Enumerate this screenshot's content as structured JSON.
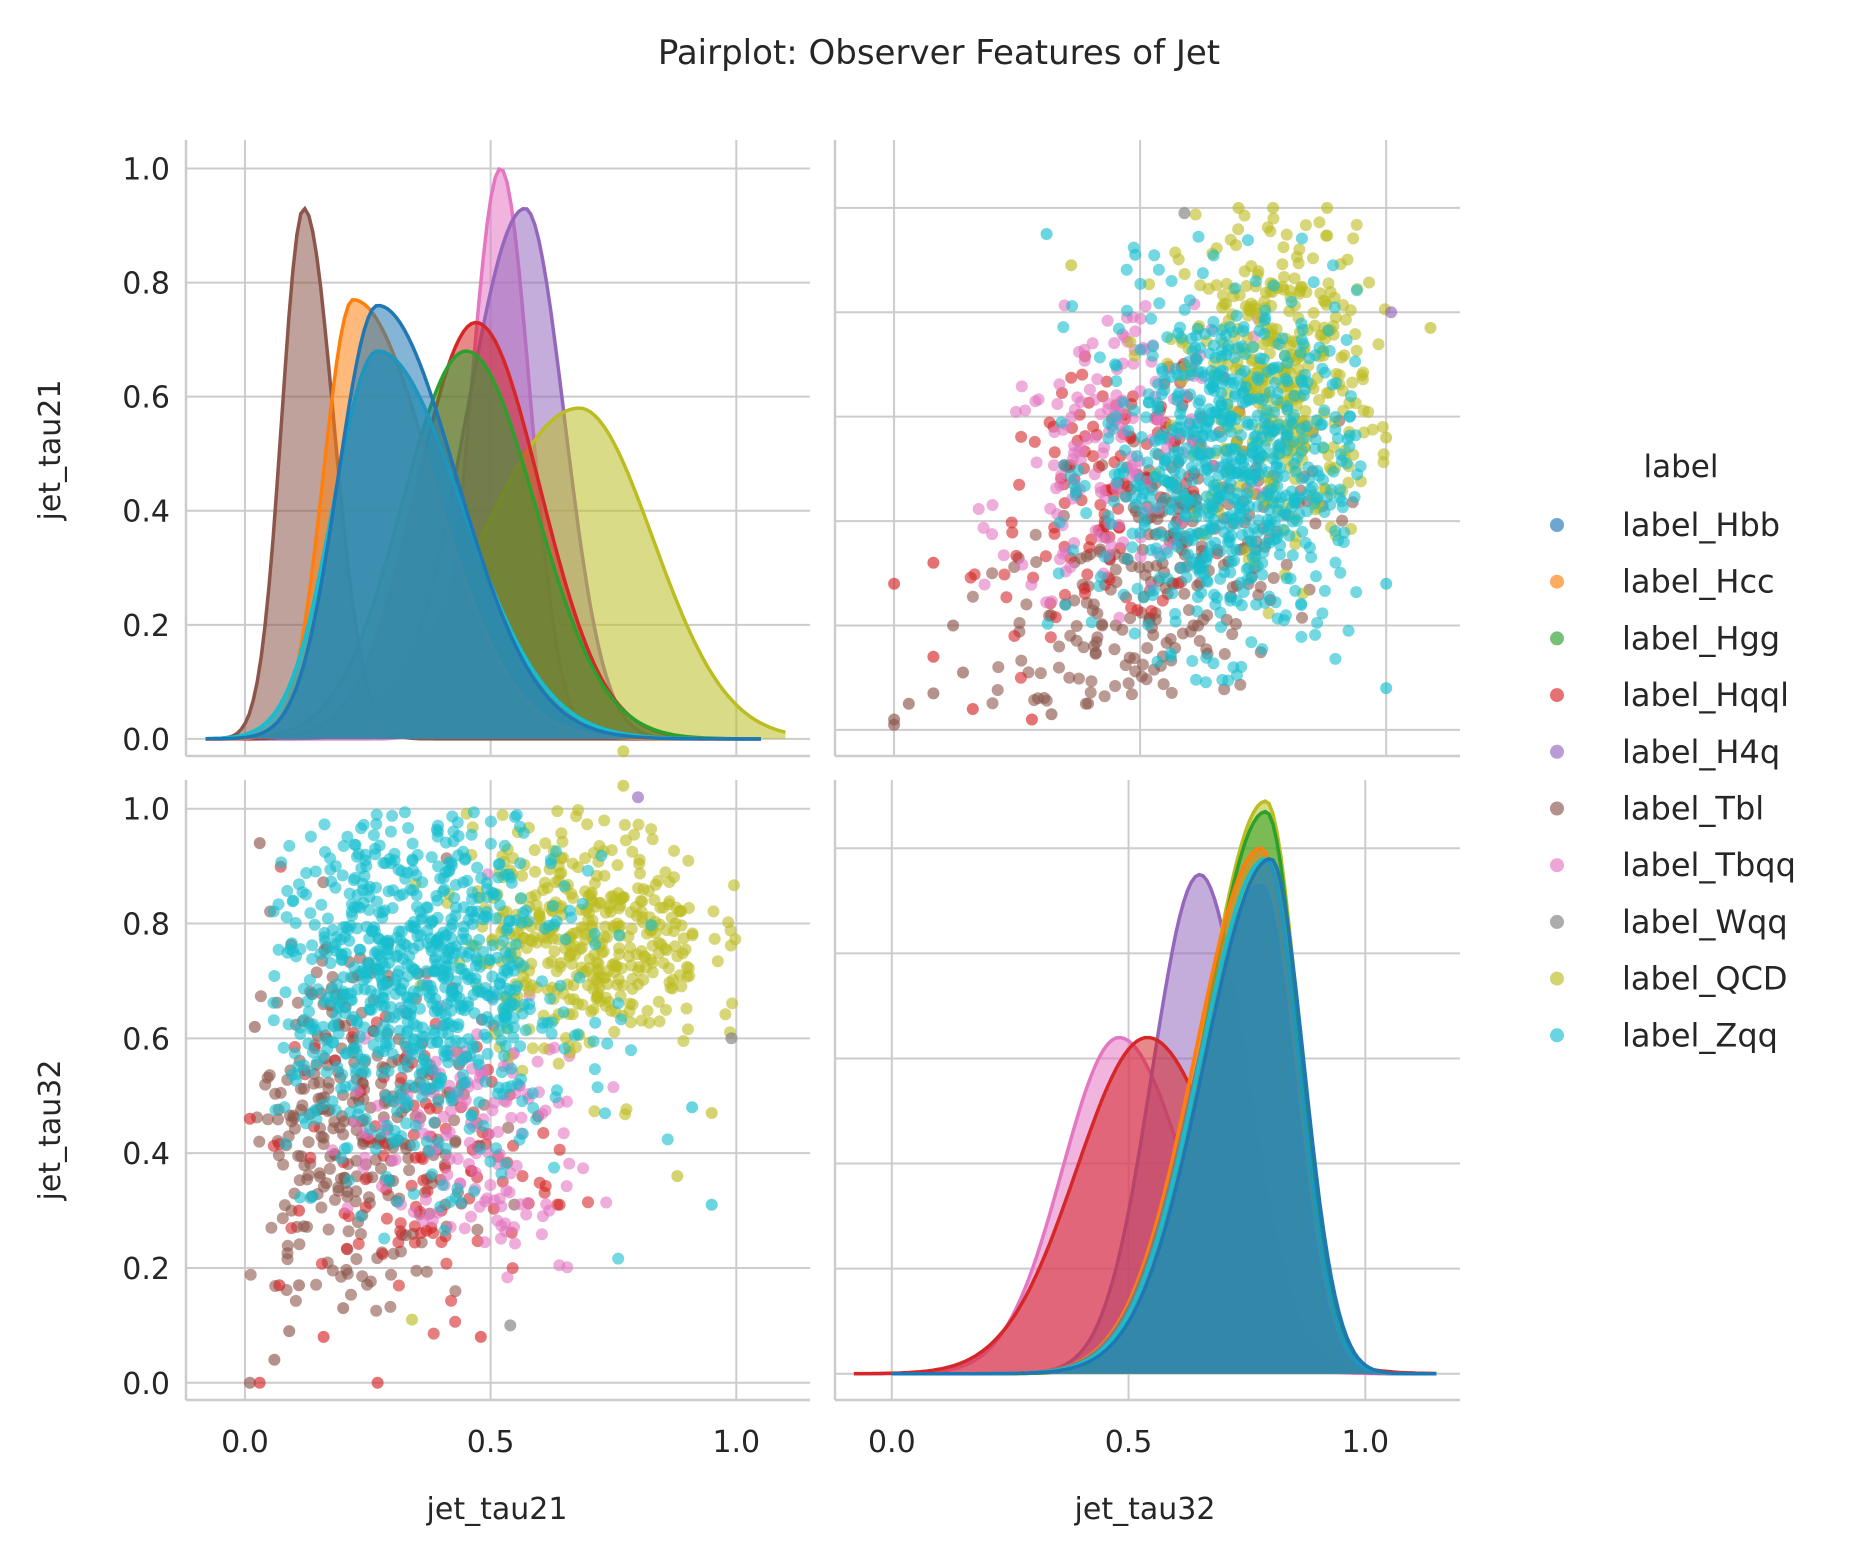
{
  "chart_data": {
    "type": "pairplot",
    "title": "Pairplot: Observer Features of Jet",
    "variables": [
      "jet_tau21",
      "jet_tau32"
    ],
    "hue_title": "label",
    "grid": true,
    "legend_position": "right",
    "x_ticks": [
      "0.0",
      "0.5",
      "1.0"
    ],
    "y_ticks_top": [
      "0.0",
      "0.2",
      "0.4",
      "0.6",
      "0.8",
      "1.0"
    ],
    "y_ticks_bottom": [
      "0.0",
      "0.2",
      "0.4",
      "0.6",
      "0.8",
      "1.0"
    ],
    "panels": {
      "tau21_kde": {
        "xlim": [
          -0.12,
          1.15
        ],
        "ylim": [
          -0.03,
          1.05
        ],
        "normalized_density": true
      },
      "scatter_tau32_vs_tau21": {
        "xlim": [
          -0.12,
          1.15
        ],
        "ylim": [
          -0.05,
          1.13
        ]
      },
      "scatter_tau21_vs_tau32": {
        "xlim": [
          -0.12,
          1.15
        ],
        "ylim": [
          -0.03,
          1.05
        ]
      },
      "tau32_kde": {
        "xlim": [
          -0.12,
          1.2
        ],
        "ylim": [
          -0.05,
          1.13
        ],
        "normalized_density": true
      }
    },
    "series": [
      {
        "name": "label_Hbb",
        "color": "#1f77b4",
        "tau21_kde": {
          "peak_x": 0.27,
          "peak_y": 0.76,
          "sd_left": 0.08,
          "sd_right": 0.16,
          "support": [
            -0.08,
            1.05
          ]
        },
        "tau32_kde": {
          "peak_x": 0.8,
          "peak_y": 0.98,
          "sd_left": 0.14,
          "sd_right": 0.07,
          "support": [
            0.0,
            1.15
          ]
        }
      },
      {
        "name": "label_Hcc",
        "color": "#ff7f0e",
        "tau21_kde": {
          "peak_x": 0.22,
          "peak_y": 0.77,
          "sd_left": 0.06,
          "sd_right": 0.16,
          "support": [
            -0.08,
            1.05
          ]
        },
        "tau32_kde": {
          "peak_x": 0.78,
          "peak_y": 1.0,
          "sd_left": 0.14,
          "sd_right": 0.07,
          "support": [
            0.0,
            1.15
          ]
        }
      },
      {
        "name": "label_Hgg",
        "color": "#2ca02c",
        "tau21_kde": {
          "peak_x": 0.45,
          "peak_y": 0.68,
          "sd_left": 0.13,
          "sd_right": 0.14,
          "support": [
            -0.08,
            1.05
          ]
        },
        "tau32_kde": {
          "peak_x": 0.79,
          "peak_y": 1.07,
          "sd_left": 0.13,
          "sd_right": 0.07,
          "support": [
            0.0,
            1.15
          ]
        }
      },
      {
        "name": "label_Hqql",
        "color": "#d62728",
        "tau21_kde": {
          "peak_x": 0.47,
          "peak_y": 0.73,
          "sd_left": 0.12,
          "sd_right": 0.13,
          "support": [
            -0.08,
            1.05
          ]
        },
        "tau32_kde": {
          "peak_x": 0.54,
          "peak_y": 0.64,
          "sd_left": 0.15,
          "sd_right": 0.16,
          "support": [
            -0.08,
            1.15
          ]
        }
      },
      {
        "name": "label_H4q",
        "color": "#9467bd",
        "tau21_kde": {
          "peak_x": 0.57,
          "peak_y": 0.93,
          "sd_left": 0.12,
          "sd_right": 0.08,
          "support": [
            -0.08,
            1.05
          ]
        },
        "tau32_kde": {
          "peak_x": 0.65,
          "peak_y": 0.95,
          "sd_left": 0.1,
          "sd_right": 0.1,
          "support": [
            0.0,
            1.15
          ]
        }
      },
      {
        "name": "label_Tbl",
        "color": "#8c564b",
        "tau21_kde": {
          "peak_x": 0.12,
          "peak_y": 0.93,
          "sd_left": 0.045,
          "sd_right": 0.06,
          "support": [
            -0.08,
            1.05
          ]
        },
        "tau32_kde": {
          "peak_x": 0.78,
          "peak_y": 0.93,
          "sd_left": 0.14,
          "sd_right": 0.07,
          "support": [
            0.0,
            1.15
          ]
        }
      },
      {
        "name": "label_Tbqq",
        "color": "#e377c2",
        "tau21_kde": {
          "peak_x": 0.52,
          "peak_y": 1.0,
          "sd_left": 0.06,
          "sd_right": 0.06,
          "support": [
            -0.08,
            1.05
          ]
        },
        "tau32_kde": {
          "peak_x": 0.48,
          "peak_y": 0.64,
          "sd_left": 0.12,
          "sd_right": 0.14,
          "support": [
            -0.08,
            1.15
          ]
        }
      },
      {
        "name": "label_Wqq",
        "color": "#7f7f7f",
        "tau21_kde": {
          "peak_x": 0.27,
          "peak_y": 0.68,
          "sd_left": 0.09,
          "sd_right": 0.17,
          "support": [
            -0.08,
            1.05
          ]
        },
        "tau32_kde": {
          "peak_x": 0.78,
          "peak_y": 0.93,
          "sd_left": 0.14,
          "sd_right": 0.07,
          "support": [
            0.0,
            1.15
          ]
        }
      },
      {
        "name": "label_QCD",
        "color": "#bcbd22",
        "tau21_kde": {
          "peak_x": 0.68,
          "peak_y": 0.58,
          "sd_left": 0.2,
          "sd_right": 0.15,
          "support": [
            -0.08,
            1.1
          ]
        },
        "tau32_kde": {
          "peak_x": 0.79,
          "peak_y": 1.09,
          "sd_left": 0.13,
          "sd_right": 0.07,
          "support": [
            0.0,
            1.15
          ]
        }
      },
      {
        "name": "label_Zqq",
        "color": "#17becf",
        "tau21_kde": {
          "peak_x": 0.27,
          "peak_y": 0.68,
          "sd_left": 0.09,
          "sd_right": 0.17,
          "support": [
            -0.08,
            1.05
          ]
        },
        "tau32_kde": {
          "peak_x": 0.79,
          "peak_y": 0.98,
          "sd_left": 0.14,
          "sd_right": 0.07,
          "support": [
            0.0,
            1.15
          ]
        }
      }
    ],
    "kde_draw_order": [
      "label_Tbqq",
      "label_H4q",
      "label_QCD",
      "label_Hqql",
      "label_Hgg",
      "label_Tbl",
      "label_Hcc",
      "label_Wqq",
      "label_Zqq",
      "label_Hbb"
    ],
    "kde32_draw_order": [
      "label_Tbqq",
      "label_H4q",
      "label_Hqql",
      "label_QCD",
      "label_Hgg",
      "label_Hcc",
      "label_Tbl",
      "label_Wqq",
      "label_Zqq",
      "label_Hbb"
    ],
    "scatter_points_tau21_tau32": [
      {
        "label": "label_Tbl",
        "x": 0.01,
        "y": 0.0
      },
      {
        "label": "label_Hqql",
        "x": 0.03,
        "y": 0.0
      },
      {
        "label": "label_Tbl",
        "x": 0.06,
        "y": 0.04
      },
      {
        "label": "label_Tbl",
        "x": 0.09,
        "y": 0.09
      },
      {
        "label": "label_Hqql",
        "x": 0.07,
        "y": 0.17
      },
      {
        "label": "label_Tbl",
        "x": 0.11,
        "y": 0.17
      },
      {
        "label": "label_Hqql",
        "x": 0.16,
        "y": 0.08
      },
      {
        "label": "label_Tbl",
        "x": 0.2,
        "y": 0.13
      },
      {
        "label": "label_Hqql",
        "x": 0.27,
        "y": 0.0
      },
      {
        "label": "label_Hqql",
        "x": 0.01,
        "y": 0.46
      },
      {
        "label": "label_Tbl",
        "x": 0.02,
        "y": 0.62
      },
      {
        "label": "label_Tbl",
        "x": 0.03,
        "y": 0.94
      },
      {
        "label": "label_QCD",
        "x": 0.34,
        "y": 0.11
      },
      {
        "label": "label_Wqq",
        "x": 0.54,
        "y": 0.1
      },
      {
        "label": "label_Hqql",
        "x": 0.48,
        "y": 0.08
      },
      {
        "label": "label_QCD",
        "x": 0.88,
        "y": 0.36
      },
      {
        "label": "label_Zqq",
        "x": 0.95,
        "y": 0.31
      },
      {
        "label": "label_Wqq",
        "x": 0.99,
        "y": 0.6
      },
      {
        "label": "label_QCD",
        "x": 0.77,
        "y": 1.1
      },
      {
        "label": "label_QCD",
        "x": 0.77,
        "y": 1.04
      },
      {
        "label": "label_H4q",
        "x": 0.8,
        "y": 1.02
      },
      {
        "label": "label_Zqq",
        "x": 0.91,
        "y": 0.48
      },
      {
        "label": "label_QCD",
        "x": 0.95,
        "y": 0.47
      },
      {
        "label": "label_Hqql",
        "x": 0.11,
        "y": 0.3
      }
    ],
    "scatter_points_tau32_tau21": [
      {
        "label": "label_Tbl",
        "x": 0.0,
        "y": 0.02
      },
      {
        "label": "label_Tbl",
        "x": 0.0,
        "y": 0.01
      },
      {
        "label": "label_Hqql",
        "x": 0.0,
        "y": 0.28
      },
      {
        "label": "label_Tbl",
        "x": 0.03,
        "y": 0.05
      },
      {
        "label": "label_Tbl",
        "x": 0.08,
        "y": 0.07
      },
      {
        "label": "label_Hqql",
        "x": 0.08,
        "y": 0.14
      },
      {
        "label": "label_Tbl",
        "x": 0.12,
        "y": 0.2
      },
      {
        "label": "label_Hqql",
        "x": 0.16,
        "y": 0.04
      },
      {
        "label": "label_Hqql",
        "x": 0.08,
        "y": 0.32
      },
      {
        "label": "label_Tbl",
        "x": 0.14,
        "y": 0.11
      },
      {
        "label": "label_Hqql",
        "x": 0.28,
        "y": 0.02
      },
      {
        "label": "label_Tbl",
        "x": 0.32,
        "y": 0.03
      },
      {
        "label": "label_Zqq",
        "x": 0.31,
        "y": 0.95
      },
      {
        "label": "label_Wqq",
        "x": 0.59,
        "y": 0.99
      },
      {
        "label": "label_QCD",
        "x": 0.36,
        "y": 0.89
      },
      {
        "label": "label_Zqq",
        "x": 0.49,
        "y": 0.91
      },
      {
        "label": "label_QCD",
        "x": 1.09,
        "y": 0.77
      },
      {
        "label": "label_H4q",
        "x": 1.01,
        "y": 0.8
      },
      {
        "label": "label_Zqq",
        "x": 1.0,
        "y": 0.08
      },
      {
        "label": "label_Zqq",
        "x": 1.0,
        "y": 0.28
      },
      {
        "label": "label_QCD",
        "x": 1.0,
        "y": 0.56
      },
      {
        "label": "label_QCD",
        "x": 0.7,
        "y": 1.0
      },
      {
        "label": "label_QCD",
        "x": 0.77,
        "y": 1.0
      },
      {
        "label": "label_QCD",
        "x": 0.88,
        "y": 1.0
      }
    ]
  }
}
